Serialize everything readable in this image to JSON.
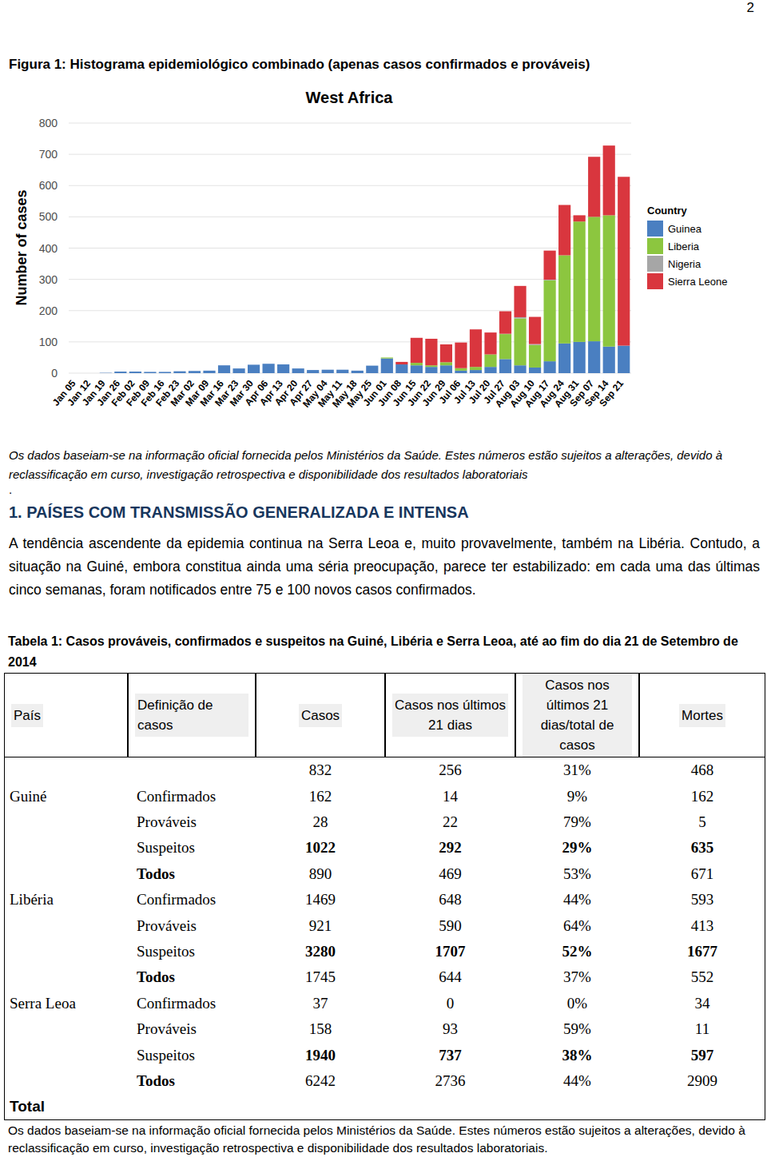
{
  "page_number": "2",
  "figure_caption": "Figura 1: Histograma epidemiológico combinado (apenas casos confirmados e prováveis)",
  "chart_data": {
    "type": "bar",
    "stacked": true,
    "title": "West Africa",
    "y_label": "Number of cases",
    "legend_title": "Country",
    "legend": "right",
    "grid": true,
    "categories": [
      "Jan 05",
      "Jan 12",
      "Jan 19",
      "Jan 26",
      "Feb 02",
      "Feb 09",
      "Feb 16",
      "Feb 23",
      "Mar 02",
      "Mar 09",
      "Mar 16",
      "Mar 23",
      "Mar 30",
      "Apr 06",
      "Apr 13",
      "Apr 20",
      "Apr 27",
      "May 04",
      "May 11",
      "May 18",
      "May 25",
      "Jun 01",
      "Jun 08",
      "Jun 15",
      "Jun 22",
      "Jun 29",
      "Jul 06",
      "Jul 13",
      "Jul 20",
      "Jul 27",
      "Aug 03",
      "Aug 10",
      "Aug 17",
      "Aug 24",
      "Aug 31",
      "Sep 07",
      "Sep 14",
      "Sep 21"
    ],
    "ylim": [
      0,
      800
    ],
    "yticks": [
      0,
      100,
      200,
      300,
      400,
      500,
      600,
      700,
      800
    ],
    "series": [
      {
        "name": "Guinea",
        "color": "#4a7fc1",
        "values": [
          0,
          0,
          1,
          5,
          5,
          4,
          4,
          6,
          7,
          8,
          25,
          15,
          27,
          30,
          28,
          15,
          10,
          11,
          11,
          8,
          24,
          47,
          28,
          25,
          20,
          25,
          8,
          10,
          20,
          45,
          25,
          18,
          38,
          95,
          100,
          102,
          85,
          88
        ]
      },
      {
        "name": "Liberia",
        "color": "#8cc63f",
        "values": [
          0,
          0,
          0,
          0,
          0,
          0,
          0,
          0,
          0,
          0,
          0,
          0,
          0,
          0,
          0,
          0,
          0,
          0,
          0,
          0,
          0,
          3,
          0,
          8,
          5,
          10,
          8,
          10,
          40,
          80,
          150,
          72,
          259,
          282,
          385,
          398,
          420,
          0
        ]
      },
      {
        "name": "Nigeria",
        "color": "#a6a6a6",
        "values": [
          0,
          0,
          0,
          0,
          0,
          0,
          0,
          0,
          0,
          0,
          0,
          0,
          0,
          0,
          0,
          0,
          0,
          0,
          0,
          0,
          0,
          0,
          0,
          0,
          0,
          0,
          0,
          0,
          0,
          1,
          4,
          3,
          2,
          0,
          0,
          0,
          0,
          0
        ]
      },
      {
        "name": "Sierra Leone",
        "color": "#d9363e",
        "values": [
          0,
          0,
          0,
          0,
          0,
          0,
          0,
          0,
          0,
          0,
          0,
          0,
          0,
          0,
          0,
          0,
          0,
          0,
          0,
          0,
          0,
          0,
          8,
          80,
          85,
          57,
          82,
          120,
          70,
          72,
          100,
          87,
          93,
          161,
          20,
          192,
          223,
          540
        ]
      }
    ]
  },
  "chart_note": "Os dados baseiam-se na informação oficial fornecida pelos Ministérios da Saúde. Estes números estão sujeitos a alterações, devido à reclassificação em curso, investigação retrospectiva e disponibilidade dos resultados laboratoriais",
  "chart_note_end": ".",
  "section": {
    "heading": "1. PAÍSES COM TRANSMISSÃO GENERALIZADA E INTENSA",
    "paragraph": "A tendência ascendente da epidemia continua na Serra Leoa e, muito provavelmente, também na Libéria. Contudo, a situação na Guiné, embora constitua ainda uma séria preocupação, parece ter estabilizado: em cada uma das últimas cinco semanas, foram notificados entre 75 e 100 novos casos confirmados."
  },
  "table": {
    "caption": "Tabela 1: Casos prováveis, confirmados e suspeitos na Guiné, Libéria e Serra Leoa, até ao fim do dia 21 de Setembro de 2014",
    "header": [
      "País",
      "Definição de casos",
      "Casos",
      "Casos nos últimos 21 dias",
      "Casos nos últimos 21 dias/total de casos",
      "Mortes"
    ],
    "rows": [
      [
        null,
        null,
        "832",
        "256",
        "31%",
        "468"
      ],
      [
        "Guiné",
        "Confirmados",
        "162",
        "14",
        "9%",
        "162"
      ],
      [
        null,
        "Prováveis",
        "28",
        "22",
        "79%",
        "5"
      ],
      [
        null,
        "Suspeitos",
        "1022",
        "292",
        "29%",
        "635"
      ],
      [
        null,
        "Todos",
        "890",
        "469",
        "53%",
        "671"
      ],
      [
        "Libéria",
        "Confirmados",
        "1469",
        "648",
        "44%",
        "593"
      ],
      [
        null,
        "Prováveis",
        "921",
        "590",
        "64%",
        "413"
      ],
      [
        null,
        "Suspeitos",
        "3280",
        "1707",
        "52%",
        "1677"
      ],
      [
        null,
        "Todos",
        "1745",
        "644",
        "37%",
        "552"
      ],
      [
        "Serra Leoa",
        "Confirmados",
        "37",
        "0",
        "0%",
        "34"
      ],
      [
        null,
        "Prováveis",
        "158",
        "93",
        "59%",
        "11"
      ],
      [
        null,
        "Suspeitos",
        "1940",
        "737",
        "38%",
        "597"
      ],
      [
        null,
        "Todos",
        "6242",
        "2736",
        "44%",
        "2909"
      ],
      [
        "Total",
        null,
        null,
        null,
        null,
        null
      ]
    ]
  },
  "table_note": "Os dados baseiam-se na informação oficial fornecida pelos Ministérios da Saúde. Estes números estão sujeitos a alterações, devido à reclassificação em curso, investigação retrospectiva e disponibilidade dos resultados laboratoriais."
}
